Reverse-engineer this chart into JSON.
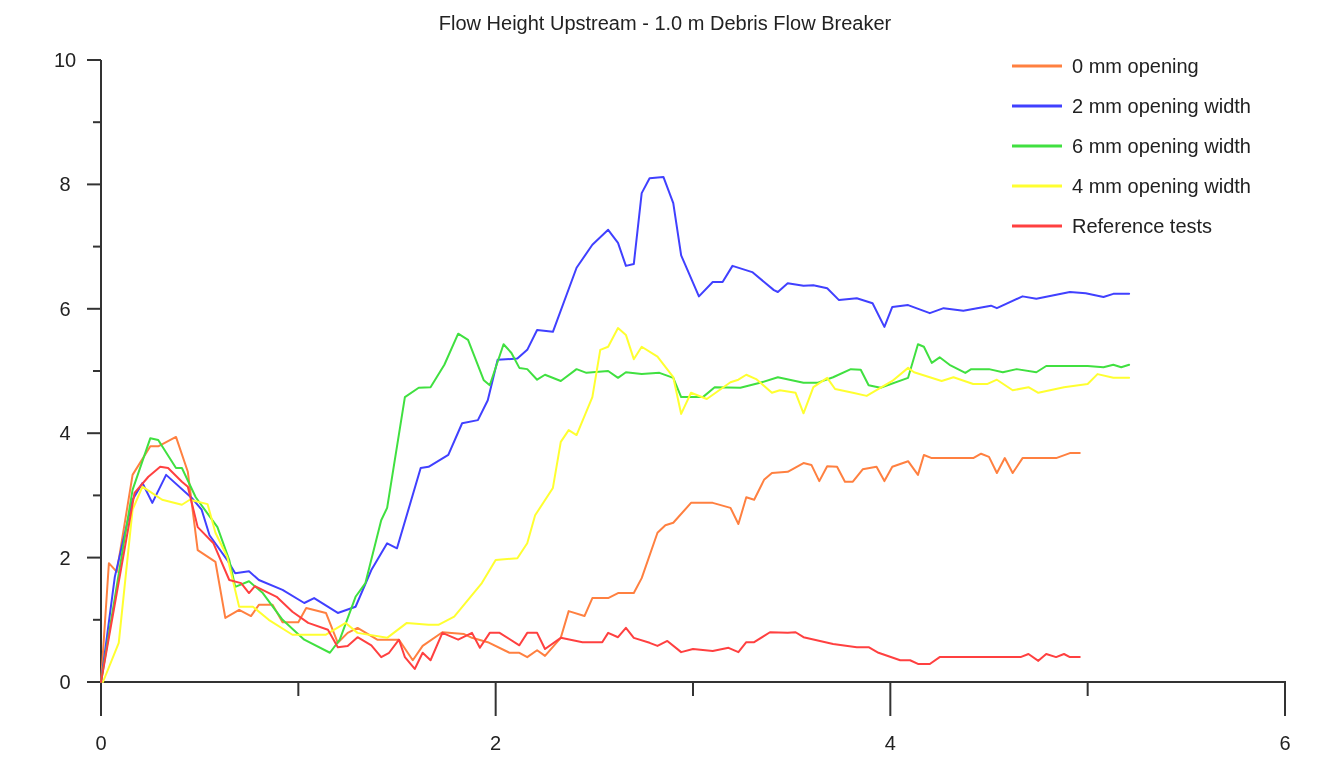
{
  "chart_data": {
    "type": "line",
    "title": "Flow Height Upstream - 1.0 m Debris Flow Breaker",
    "xlim": [
      0,
      6
    ],
    "ylim": [
      0,
      10
    ],
    "xticks": [
      0,
      {
        "value": 1,
        "label": null
      },
      2,
      {
        "value": 3,
        "label": null
      },
      4,
      {
        "value": 5,
        "label": null
      },
      6
    ],
    "yticks": [
      0,
      {
        "value": 1,
        "label": null
      },
      2,
      {
        "value": 3,
        "label": null
      },
      4,
      {
        "value": 5,
        "label": null
      },
      6,
      {
        "value": 7,
        "label": null
      },
      8,
      {
        "value": 9,
        "label": null
      },
      10
    ],
    "grid": false,
    "legend": "top right",
    "marker": "none",
    "line_style": "solid",
    "series": [
      {
        "name": "0 mm opening",
        "color": "#ff8040",
        "x": [
          0,
          0.04,
          0.08,
          0.16,
          0.25,
          0.29,
          0.38,
          0.44,
          0.49,
          0.58,
          0.63,
          0.7,
          0.76,
          0.8,
          0.87,
          0.92,
          1.0,
          1.04,
          1.14,
          1.2,
          1.25,
          1.3,
          1.4,
          1.51,
          1.58,
          1.63,
          1.73,
          1.84,
          1.88,
          1.96,
          2.07,
          2.12,
          2.16,
          2.21,
          2.25,
          2.33,
          2.37,
          2.45,
          2.49,
          2.57,
          2.62,
          2.7,
          2.74,
          2.82,
          2.86,
          2.9,
          2.99,
          3.1,
          3.19,
          3.23,
          3.27,
          3.31,
          3.36,
          3.4,
          3.48,
          3.56,
          3.6,
          3.64,
          3.68,
          3.73,
          3.77,
          3.81,
          3.86,
          3.93,
          3.97,
          4.01,
          4.09,
          4.14,
          4.17,
          4.21,
          4.42,
          4.46,
          4.5,
          4.54,
          4.58,
          4.62,
          4.67,
          4.84,
          4.91,
          4.96
        ],
        "values": [
          0,
          1.91,
          1.77,
          3.33,
          3.79,
          3.79,
          3.94,
          3.38,
          2.12,
          1.93,
          1.03,
          1.16,
          1.06,
          1.24,
          1.24,
          0.96,
          0.96,
          1.19,
          1.11,
          0.63,
          0.79,
          0.87,
          0.68,
          0.68,
          0.35,
          0.58,
          0.8,
          0.77,
          0.71,
          0.64,
          0.47,
          0.47,
          0.4,
          0.51,
          0.42,
          0.71,
          1.14,
          1.06,
          1.35,
          1.35,
          1.43,
          1.43,
          1.67,
          2.4,
          2.52,
          2.56,
          2.88,
          2.88,
          2.8,
          2.54,
          2.97,
          2.93,
          3.25,
          3.36,
          3.38,
          3.52,
          3.49,
          3.23,
          3.47,
          3.46,
          3.22,
          3.22,
          3.42,
          3.46,
          3.23,
          3.46,
          3.55,
          3.33,
          3.65,
          3.6,
          3.6,
          3.67,
          3.62,
          3.36,
          3.6,
          3.36,
          3.6,
          3.6,
          3.68,
          3.68
        ]
      },
      {
        "name": "2 mm opening width",
        "color": "#4040ff",
        "x": [
          0,
          0.07,
          0.16,
          0.21,
          0.26,
          0.33,
          0.46,
          0.51,
          0.55,
          0.64,
          0.68,
          0.75,
          0.8,
          0.92,
          1.03,
          1.08,
          1.2,
          1.29,
          1.37,
          1.45,
          1.5,
          1.62,
          1.66,
          1.76,
          1.83,
          1.91,
          1.96,
          2.01,
          2.11,
          2.16,
          2.21,
          2.29,
          2.41,
          2.49,
          2.57,
          2.62,
          2.66,
          2.7,
          2.74,
          2.78,
          2.85,
          2.9,
          2.94,
          3.03,
          3.1,
          3.15,
          3.2,
          3.3,
          3.41,
          3.43,
          3.48,
          3.56,
          3.61,
          3.68,
          3.74,
          3.83,
          3.91,
          3.97,
          4.01,
          4.09,
          4.2,
          4.27,
          4.37,
          4.51,
          4.54,
          4.67,
          4.74,
          4.91,
          4.99,
          5.08,
          5.13,
          5.21
        ],
        "values": [
          0,
          1.69,
          2.93,
          3.2,
          2.88,
          3.33,
          2.96,
          2.77,
          2.36,
          1.96,
          1.75,
          1.78,
          1.64,
          1.48,
          1.27,
          1.35,
          1.11,
          1.21,
          1.8,
          2.23,
          2.15,
          3.44,
          3.46,
          3.65,
          4.16,
          4.21,
          4.53,
          5.18,
          5.2,
          5.34,
          5.66,
          5.63,
          6.66,
          7.03,
          7.27,
          7.06,
          6.69,
          6.72,
          7.86,
          8.1,
          8.12,
          7.7,
          6.86,
          6.2,
          6.43,
          6.43,
          6.69,
          6.59,
          6.3,
          6.27,
          6.41,
          6.37,
          6.38,
          6.33,
          6.14,
          6.17,
          6.09,
          5.71,
          6.03,
          6.06,
          5.93,
          6.01,
          5.97,
          6.05,
          6.01,
          6.2,
          6.16,
          6.27,
          6.25,
          6.19,
          6.24,
          6.24
        ]
      },
      {
        "name": "6 mm opening width",
        "color": "#40e040",
        "x": [
          0,
          0.16,
          0.25,
          0.29,
          0.38,
          0.41,
          0.48,
          0.59,
          0.65,
          0.68,
          0.75,
          0.82,
          0.92,
          1.03,
          1.16,
          1.21,
          1.29,
          1.34,
          1.42,
          1.45,
          1.54,
          1.61,
          1.67,
          1.74,
          1.81,
          1.86,
          1.94,
          1.97,
          2.04,
          2.08,
          2.12,
          2.16,
          2.21,
          2.25,
          2.33,
          2.41,
          2.46,
          2.57,
          2.62,
          2.66,
          2.74,
          2.83,
          2.9,
          2.94,
          3.05,
          3.11,
          3.24,
          3.34,
          3.43,
          3.56,
          3.63,
          3.71,
          3.8,
          3.85,
          3.89,
          3.95,
          4.09,
          4.14,
          4.17,
          4.21,
          4.25,
          4.3,
          4.38,
          4.41,
          4.5,
          4.57,
          4.64,
          4.74,
          4.79,
          4.9,
          5.0,
          5.08,
          5.13,
          5.17,
          5.21
        ],
        "values": [
          0,
          3.09,
          3.92,
          3.89,
          3.44,
          3.44,
          2.97,
          2.49,
          1.96,
          1.53,
          1.62,
          1.43,
          1.0,
          0.68,
          0.47,
          0.68,
          1.37,
          1.59,
          2.6,
          2.8,
          4.58,
          4.73,
          4.74,
          5.1,
          5.6,
          5.5,
          4.85,
          4.77,
          5.43,
          5.29,
          5.05,
          5.03,
          4.86,
          4.94,
          4.84,
          5.03,
          4.97,
          5.0,
          4.89,
          4.98,
          4.95,
          4.97,
          4.89,
          4.58,
          4.58,
          4.74,
          4.73,
          4.81,
          4.9,
          4.81,
          4.81,
          4.9,
          5.03,
          5.02,
          4.77,
          4.73,
          4.89,
          5.43,
          5.39,
          5.13,
          5.22,
          5.1,
          4.97,
          5.03,
          5.03,
          4.98,
          5.03,
          4.98,
          5.08,
          5.08,
          5.08,
          5.06,
          5.1,
          5.06,
          5.1
        ]
      },
      {
        "name": "4 mm opening width",
        "color": "#ffff30",
        "x": [
          0.01,
          0.09,
          0.16,
          0.21,
          0.31,
          0.41,
          0.45,
          0.54,
          0.58,
          0.64,
          0.7,
          0.77,
          0.85,
          0.97,
          1.14,
          1.24,
          1.3,
          1.45,
          1.55,
          1.66,
          1.71,
          1.79,
          1.93,
          2.0,
          2.11,
          2.16,
          2.2,
          2.29,
          2.33,
          2.37,
          2.41,
          2.49,
          2.53,
          2.57,
          2.62,
          2.66,
          2.7,
          2.74,
          2.82,
          2.9,
          2.94,
          2.99,
          3.07,
          3.19,
          3.23,
          3.27,
          3.32,
          3.4,
          3.44,
          3.52,
          3.56,
          3.61,
          3.68,
          3.72,
          3.81,
          3.88,
          4.01,
          4.09,
          4.12,
          4.26,
          4.32,
          4.42,
          4.49,
          4.54,
          4.62,
          4.7,
          4.75,
          4.88,
          5.0,
          5.05,
          5.13,
          5.21
        ],
        "values": [
          0,
          0.63,
          2.77,
          3.14,
          2.93,
          2.85,
          2.93,
          2.86,
          2.4,
          2.01,
          1.21,
          1.21,
          1.0,
          0.76,
          0.76,
          0.95,
          0.79,
          0.71,
          0.95,
          0.92,
          0.92,
          1.05,
          1.59,
          1.96,
          1.99,
          2.23,
          2.68,
          3.12,
          3.86,
          4.05,
          3.97,
          4.58,
          5.34,
          5.39,
          5.69,
          5.58,
          5.19,
          5.39,
          5.23,
          4.9,
          4.31,
          4.65,
          4.55,
          4.82,
          4.86,
          4.94,
          4.87,
          4.65,
          4.69,
          4.65,
          4.32,
          4.74,
          4.89,
          4.71,
          4.65,
          4.6,
          4.84,
          5.05,
          4.98,
          4.84,
          4.9,
          4.79,
          4.79,
          4.86,
          4.69,
          4.74,
          4.65,
          4.74,
          4.79,
          4.95,
          4.89,
          4.89
        ]
      },
      {
        "name": "Reference tests",
        "color": "#ff4040",
        "x": [
          0,
          0.17,
          0.24,
          0.3,
          0.34,
          0.41,
          0.44,
          0.49,
          0.57,
          0.65,
          0.71,
          0.75,
          0.78,
          0.89,
          0.97,
          1.05,
          1.15,
          1.2,
          1.25,
          1.3,
          1.37,
          1.42,
          1.46,
          1.51,
          1.54,
          1.59,
          1.63,
          1.67,
          1.73,
          1.81,
          1.88,
          1.92,
          1.97,
          2.02,
          2.12,
          2.16,
          2.21,
          2.25,
          2.33,
          2.44,
          2.54,
          2.57,
          2.62,
          2.66,
          2.7,
          2.78,
          2.82,
          2.87,
          2.94,
          3.0,
          3.1,
          3.18,
          3.23,
          3.27,
          3.31,
          3.39,
          3.48,
          3.52,
          3.56,
          3.71,
          3.83,
          3.89,
          3.94,
          4.05,
          4.1,
          4.14,
          4.2,
          4.25,
          4.66,
          4.7,
          4.75,
          4.79,
          4.84,
          4.88,
          4.91,
          4.96
        ],
        "values": [
          0,
          3.04,
          3.3,
          3.46,
          3.44,
          3.22,
          3.14,
          2.49,
          2.23,
          1.64,
          1.59,
          1.43,
          1.54,
          1.37,
          1.13,
          0.95,
          0.84,
          0.56,
          0.58,
          0.72,
          0.59,
          0.4,
          0.47,
          0.68,
          0.4,
          0.21,
          0.47,
          0.35,
          0.79,
          0.68,
          0.79,
          0.55,
          0.79,
          0.79,
          0.59,
          0.79,
          0.79,
          0.53,
          0.71,
          0.64,
          0.64,
          0.79,
          0.72,
          0.87,
          0.71,
          0.63,
          0.58,
          0.66,
          0.48,
          0.53,
          0.5,
          0.55,
          0.48,
          0.64,
          0.64,
          0.8,
          0.79,
          0.8,
          0.72,
          0.61,
          0.56,
          0.56,
          0.47,
          0.35,
          0.35,
          0.29,
          0.29,
          0.4,
          0.4,
          0.45,
          0.34,
          0.45,
          0.4,
          0.45,
          0.4,
          0.4
        ]
      }
    ]
  }
}
